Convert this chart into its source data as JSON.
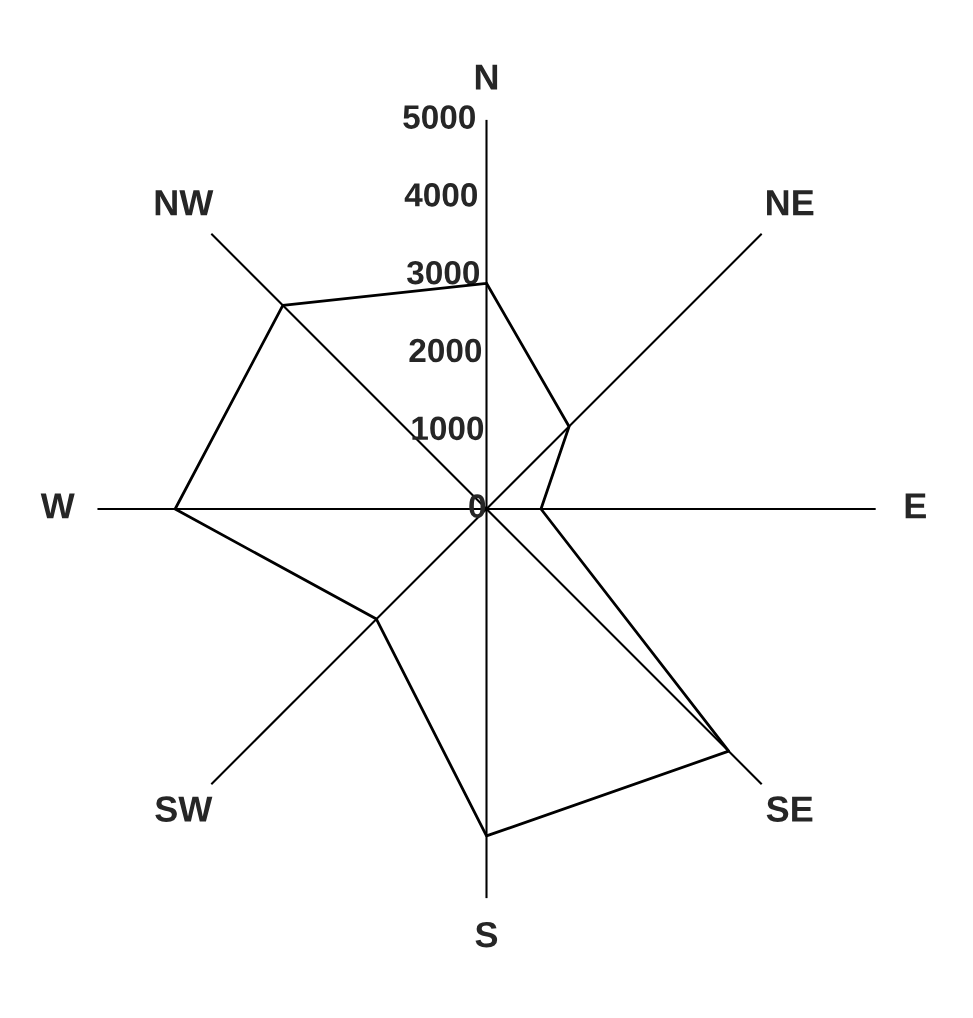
{
  "chart_data": {
    "type": "radar",
    "categories": [
      "N",
      "NE",
      "E",
      "SE",
      "S",
      "SW",
      "W",
      "NW"
    ],
    "series": [
      {
        "color": "#000000",
        "values": [
          2900,
          1500,
          700,
          4400,
          4200,
          2000,
          4000,
          3700
        ]
      }
    ],
    "ylim": [
      0,
      5000
    ],
    "yticks": [
      0,
      1000,
      2000,
      3000,
      4000,
      5000
    ],
    "grid": "x",
    "marker": "none",
    "line_style": "solid"
  }
}
